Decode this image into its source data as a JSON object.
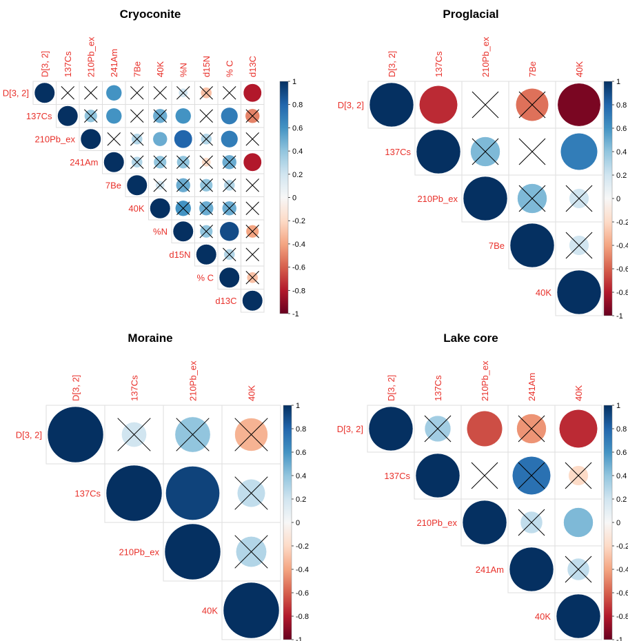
{
  "colors": {
    "neg1": "#67001f",
    "negmid": "#d6604d",
    "negweak": "#fddbc7",
    "zero": "#f7f7f7",
    "posweak": "#d1e5f0",
    "posmid": "#4393c3",
    "pos1": "#053061",
    "label": "#e8302a"
  },
  "colorbar_ticks": [
    "1",
    "0.8",
    "0.6",
    "0.4",
    "0.2",
    "0",
    "-0.2",
    "-0.4",
    "-0.6",
    "-0.8",
    "-1"
  ],
  "chart_data": [
    {
      "type": "heatmap",
      "title": "Cryoconite",
      "variables": [
        "D[3, 2]",
        "137Cs",
        "210Pb_ex",
        "241Am",
        "7Be",
        "40K",
        "%N",
        "d15N",
        "% C",
        "d13C"
      ],
      "cells": [
        {
          "r": 0,
          "c": 0,
          "v": 1,
          "x": false
        },
        {
          "r": 0,
          "c": 1,
          "v": 0,
          "x": true
        },
        {
          "r": 0,
          "c": 2,
          "v": 0,
          "x": true
        },
        {
          "r": 0,
          "c": 3,
          "v": 0.6,
          "x": false
        },
        {
          "r": 0,
          "c": 4,
          "v": 0,
          "x": true
        },
        {
          "r": 0,
          "c": 5,
          "v": 0,
          "x": true
        },
        {
          "r": 0,
          "c": 6,
          "v": 0.2,
          "x": true
        },
        {
          "r": 0,
          "c": 7,
          "v": -0.3,
          "x": true
        },
        {
          "r": 0,
          "c": 8,
          "v": 0,
          "x": true
        },
        {
          "r": 0,
          "c": 9,
          "v": -0.8,
          "x": false
        },
        {
          "r": 1,
          "c": 1,
          "v": 1,
          "x": false
        },
        {
          "r": 1,
          "c": 2,
          "v": 0.4,
          "x": true
        },
        {
          "r": 1,
          "c": 3,
          "v": 0.6,
          "x": false
        },
        {
          "r": 1,
          "c": 4,
          "v": 0,
          "x": true
        },
        {
          "r": 1,
          "c": 5,
          "v": 0.5,
          "x": true
        },
        {
          "r": 1,
          "c": 6,
          "v": 0.6,
          "x": false
        },
        {
          "r": 1,
          "c": 7,
          "v": 0,
          "x": true
        },
        {
          "r": 1,
          "c": 8,
          "v": 0.7,
          "x": false
        },
        {
          "r": 1,
          "c": 9,
          "v": -0.5,
          "x": true
        },
        {
          "r": 2,
          "c": 2,
          "v": 1,
          "x": false
        },
        {
          "r": 2,
          "c": 3,
          "v": 0,
          "x": true
        },
        {
          "r": 2,
          "c": 4,
          "v": 0.3,
          "x": true
        },
        {
          "r": 2,
          "c": 5,
          "v": 0.5,
          "x": false
        },
        {
          "r": 2,
          "c": 6,
          "v": 0.8,
          "x": false
        },
        {
          "r": 2,
          "c": 7,
          "v": 0.3,
          "x": true
        },
        {
          "r": 2,
          "c": 8,
          "v": 0.7,
          "x": false
        },
        {
          "r": 2,
          "c": 9,
          "v": 0,
          "x": true
        },
        {
          "r": 3,
          "c": 3,
          "v": 1,
          "x": false
        },
        {
          "r": 3,
          "c": 4,
          "v": 0.3,
          "x": true
        },
        {
          "r": 3,
          "c": 5,
          "v": 0.4,
          "x": true
        },
        {
          "r": 3,
          "c": 6,
          "v": 0.4,
          "x": true
        },
        {
          "r": 3,
          "c": 7,
          "v": -0.2,
          "x": true
        },
        {
          "r": 3,
          "c": 8,
          "v": 0.5,
          "x": true
        },
        {
          "r": 3,
          "c": 9,
          "v": -0.8,
          "x": false
        },
        {
          "r": 4,
          "c": 4,
          "v": 1,
          "x": false
        },
        {
          "r": 4,
          "c": 5,
          "v": 0.2,
          "x": true
        },
        {
          "r": 4,
          "c": 6,
          "v": 0.5,
          "x": true
        },
        {
          "r": 4,
          "c": 7,
          "v": 0.4,
          "x": true
        },
        {
          "r": 4,
          "c": 8,
          "v": 0.3,
          "x": true
        },
        {
          "r": 4,
          "c": 9,
          "v": 0,
          "x": true
        },
        {
          "r": 5,
          "c": 5,
          "v": 1,
          "x": false
        },
        {
          "r": 5,
          "c": 6,
          "v": 0.6,
          "x": true
        },
        {
          "r": 5,
          "c": 7,
          "v": 0.5,
          "x": true
        },
        {
          "r": 5,
          "c": 8,
          "v": 0.5,
          "x": true
        },
        {
          "r": 5,
          "c": 9,
          "v": 0,
          "x": true
        },
        {
          "r": 6,
          "c": 6,
          "v": 1,
          "x": false
        },
        {
          "r": 6,
          "c": 7,
          "v": 0.4,
          "x": true
        },
        {
          "r": 6,
          "c": 8,
          "v": 0.9,
          "x": false
        },
        {
          "r": 6,
          "c": 9,
          "v": -0.4,
          "x": true
        },
        {
          "r": 7,
          "c": 7,
          "v": 1,
          "x": false
        },
        {
          "r": 7,
          "c": 8,
          "v": 0.3,
          "x": true
        },
        {
          "r": 7,
          "c": 9,
          "v": 0,
          "x": true
        },
        {
          "r": 8,
          "c": 8,
          "v": 1,
          "x": false
        },
        {
          "r": 8,
          "c": 9,
          "v": -0.3,
          "x": true
        },
        {
          "r": 9,
          "c": 9,
          "v": 1,
          "x": false
        }
      ]
    },
    {
      "type": "heatmap",
      "title": "Proglacial",
      "variables": [
        "D[3, 2]",
        "137Cs",
        "210Pb_ex",
        "7Be",
        "40K"
      ],
      "cells": [
        {
          "r": 0,
          "c": 0,
          "v": 1,
          "x": false
        },
        {
          "r": 0,
          "c": 1,
          "v": -0.75,
          "x": false
        },
        {
          "r": 0,
          "c": 2,
          "v": 0,
          "x": true
        },
        {
          "r": 0,
          "c": 3,
          "v": -0.55,
          "x": true
        },
        {
          "r": 0,
          "c": 4,
          "v": -0.95,
          "x": false
        },
        {
          "r": 1,
          "c": 1,
          "v": 1,
          "x": false
        },
        {
          "r": 1,
          "c": 2,
          "v": 0.45,
          "x": true
        },
        {
          "r": 1,
          "c": 3,
          "v": 0,
          "x": true
        },
        {
          "r": 1,
          "c": 4,
          "v": 0.7,
          "x": false
        },
        {
          "r": 2,
          "c": 2,
          "v": 1,
          "x": false
        },
        {
          "r": 2,
          "c": 3,
          "v": 0.45,
          "x": true
        },
        {
          "r": 2,
          "c": 4,
          "v": 0.2,
          "x": true
        },
        {
          "r": 3,
          "c": 3,
          "v": 1,
          "x": false
        },
        {
          "r": 3,
          "c": 4,
          "v": 0.2,
          "x": true
        },
        {
          "r": 4,
          "c": 4,
          "v": 1,
          "x": false
        }
      ]
    },
    {
      "type": "heatmap",
      "title": "Moraine",
      "variables": [
        "D[3, 2]",
        "137Cs",
        "210Pb_ex",
        "40K"
      ],
      "cells": [
        {
          "r": 0,
          "c": 0,
          "v": 1,
          "x": false
        },
        {
          "r": 0,
          "c": 1,
          "v": 0.2,
          "x": true
        },
        {
          "r": 0,
          "c": 2,
          "v": 0.4,
          "x": true
        },
        {
          "r": 0,
          "c": 3,
          "v": -0.35,
          "x": true
        },
        {
          "r": 1,
          "c": 1,
          "v": 1,
          "x": false
        },
        {
          "r": 1,
          "c": 2,
          "v": 0.93,
          "x": false
        },
        {
          "r": 1,
          "c": 3,
          "v": 0.25,
          "x": true
        },
        {
          "r": 2,
          "c": 2,
          "v": 1,
          "x": false
        },
        {
          "r": 2,
          "c": 3,
          "v": 0.3,
          "x": true
        },
        {
          "r": 3,
          "c": 3,
          "v": 1,
          "x": false
        }
      ]
    },
    {
      "type": "heatmap",
      "title": "Lake core",
      "variables": [
        "D[3, 2]",
        "137Cs",
        "210Pb_ex",
        "241Am",
        "40K"
      ],
      "cells": [
        {
          "r": 0,
          "c": 0,
          "v": 1,
          "x": false
        },
        {
          "r": 0,
          "c": 1,
          "v": 0.35,
          "x": true
        },
        {
          "r": 0,
          "c": 2,
          "v": -0.65,
          "x": false
        },
        {
          "r": 0,
          "c": 3,
          "v": -0.45,
          "x": true
        },
        {
          "r": 0,
          "c": 4,
          "v": -0.75,
          "x": false
        },
        {
          "r": 1,
          "c": 1,
          "v": 1,
          "x": false
        },
        {
          "r": 1,
          "c": 2,
          "v": 0,
          "x": true
        },
        {
          "r": 1,
          "c": 3,
          "v": 0.75,
          "x": true
        },
        {
          "r": 1,
          "c": 4,
          "v": -0.2,
          "x": true
        },
        {
          "r": 2,
          "c": 2,
          "v": 1,
          "x": false
        },
        {
          "r": 2,
          "c": 3,
          "v": 0.25,
          "x": true
        },
        {
          "r": 2,
          "c": 4,
          "v": 0.45,
          "x": false
        },
        {
          "r": 3,
          "c": 3,
          "v": 1,
          "x": false
        },
        {
          "r": 3,
          "c": 4,
          "v": 0.25,
          "x": true
        },
        {
          "r": 4,
          "c": 4,
          "v": 1,
          "x": false
        }
      ]
    }
  ]
}
